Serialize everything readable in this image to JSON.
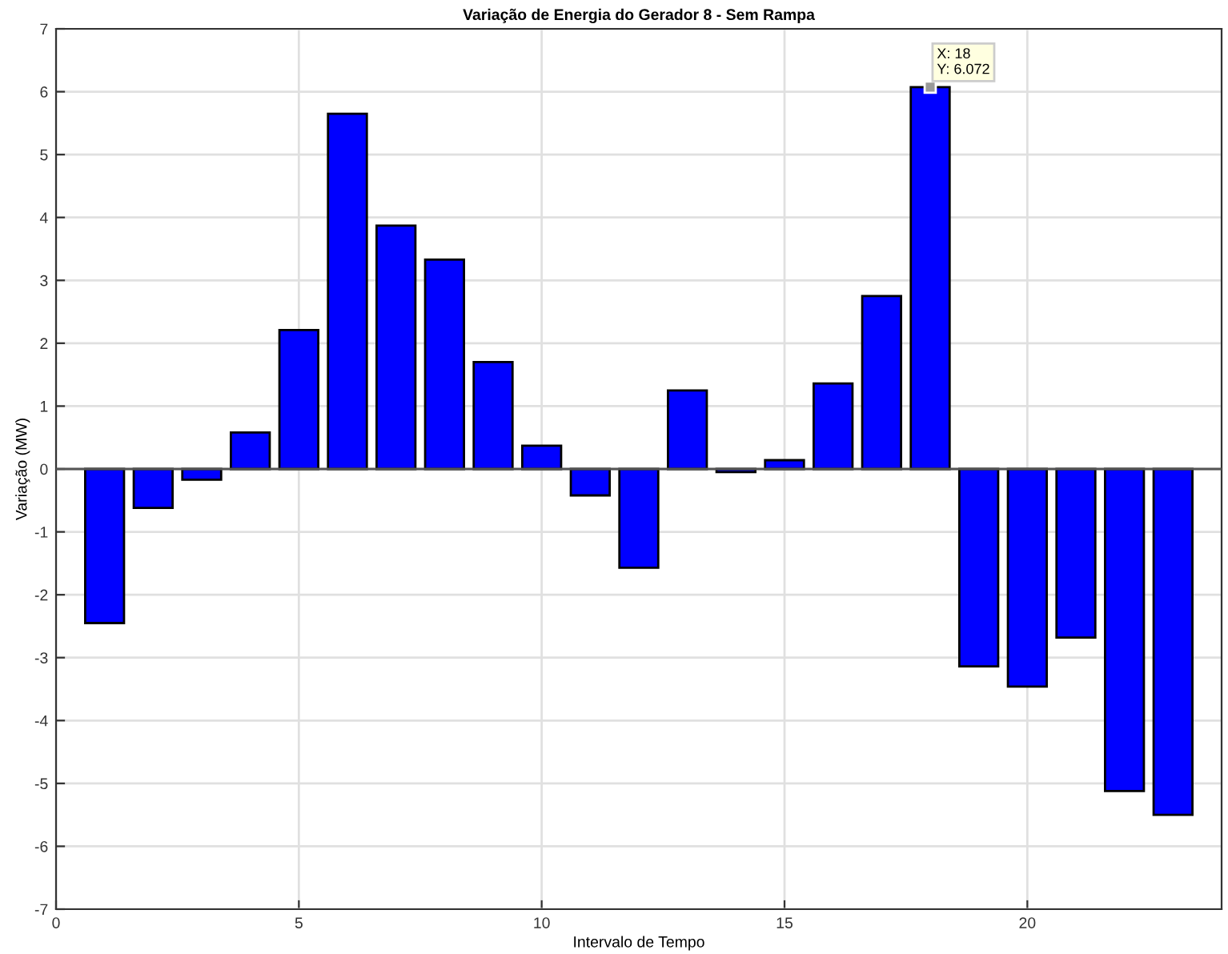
{
  "chart_data": {
    "type": "bar",
    "title": "Variação de Energia do Gerador 8 - Sem Rampa",
    "xlabel": "Intervalo de Tempo",
    "ylabel": "Variação (MW)",
    "x": [
      1,
      2,
      3,
      4,
      5,
      6,
      7,
      8,
      9,
      10,
      11,
      12,
      13,
      14,
      15,
      16,
      17,
      18,
      19,
      20,
      21,
      22,
      23
    ],
    "values": [
      -2.45,
      -0.62,
      -0.17,
      0.58,
      2.21,
      5.65,
      3.87,
      3.33,
      1.7,
      0.37,
      -0.42,
      -1.57,
      1.25,
      -0.05,
      0.14,
      1.36,
      2.75,
      6.072,
      -3.14,
      -3.46,
      -2.68,
      -5.12,
      -5.5
    ],
    "color": "#0000ff",
    "xlim": [
      0,
      24
    ],
    "xticks": [
      0,
      5,
      10,
      15,
      20
    ],
    "ylim": [
      -7,
      7
    ],
    "yticks": [
      -7,
      -6,
      -5,
      -4,
      -3,
      -2,
      -1,
      0,
      1,
      2,
      3,
      4,
      5,
      6,
      7
    ],
    "grid": true,
    "annotations": [
      {
        "text": "X: 18\nY: 6.072",
        "x": 18,
        "y": 6.072
      }
    ]
  }
}
